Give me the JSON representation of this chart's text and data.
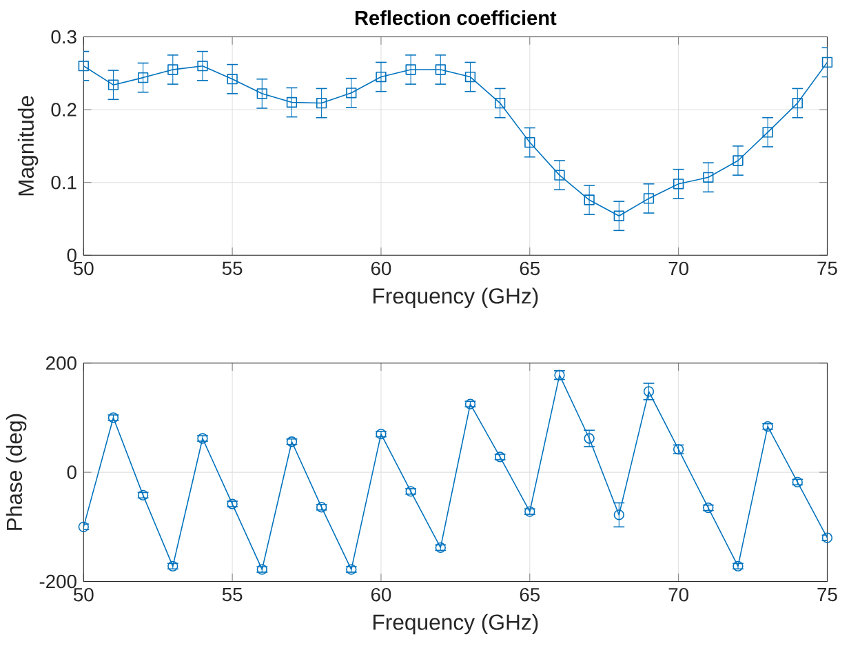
{
  "chart_data": [
    {
      "type": "line",
      "title": "Reflection coefficient",
      "xlabel": "Frequency (GHz)",
      "ylabel": "Magnitude",
      "x": [
        50,
        51,
        52,
        53,
        54,
        55,
        56,
        57,
        58,
        59,
        60,
        61,
        62,
        63,
        64,
        65,
        66,
        67,
        68,
        69,
        70,
        71,
        72,
        73,
        74,
        75
      ],
      "series": [
        {
          "color": "#0072bd",
          "values": [
            0.26,
            0.234,
            0.244,
            0.255,
            0.26,
            0.242,
            0.222,
            0.21,
            0.209,
            0.223,
            0.245,
            0.255,
            0.255,
            0.245,
            0.209,
            0.155,
            0.11,
            0.076,
            0.054,
            0.078,
            0.098,
            0.107,
            0.13,
            0.169,
            0.209,
            0.265
          ],
          "errors": [
            0.02,
            0.02,
            0.02,
            0.02,
            0.02,
            0.02,
            0.02,
            0.02,
            0.02,
            0.02,
            0.02,
            0.02,
            0.02,
            0.02,
            0.02,
            0.02,
            0.02,
            0.02,
            0.02,
            0.02,
            0.02,
            0.02,
            0.02,
            0.02,
            0.02,
            0.02
          ]
        }
      ],
      "xlim": [
        50,
        75
      ],
      "ylim": [
        0,
        0.3
      ],
      "xticks": [
        50,
        55,
        60,
        65,
        70,
        75
      ],
      "yticks": [
        0,
        0.1,
        0.2,
        0.3
      ],
      "grid": true,
      "marker": "square",
      "line_style": "solid"
    },
    {
      "type": "line",
      "xlabel": "Frequency (GHz)",
      "ylabel": "Phase (deg)",
      "x": [
        50,
        51,
        52,
        53,
        54,
        55,
        56,
        57,
        58,
        59,
        60,
        61,
        62,
        63,
        64,
        65,
        66,
        67,
        68,
        69,
        70,
        71,
        72,
        73,
        74,
        75
      ],
      "series": [
        {
          "color": "#0072bd",
          "values": [
            -100,
            100,
            -42,
            -172,
            62,
            -58,
            -178,
            56,
            -64,
            -178,
            70,
            -35,
            -138,
            125,
            28,
            -72,
            178,
            62,
            -78,
            148,
            42,
            -65,
            -172,
            84,
            -18,
            -120
          ],
          "errors": [
            5,
            5,
            5,
            5,
            5,
            5,
            5,
            5,
            5,
            5,
            5,
            5,
            5,
            5,
            5,
            5,
            8,
            15,
            22,
            15,
            8,
            5,
            5,
            5,
            5,
            5
          ]
        }
      ],
      "xlim": [
        50,
        75
      ],
      "ylim": [
        -200,
        200
      ],
      "xticks": [
        50,
        55,
        60,
        65,
        70,
        75
      ],
      "yticks": [
        -200,
        0,
        200
      ],
      "grid": true,
      "marker": "circle",
      "line_style": "solid"
    }
  ]
}
